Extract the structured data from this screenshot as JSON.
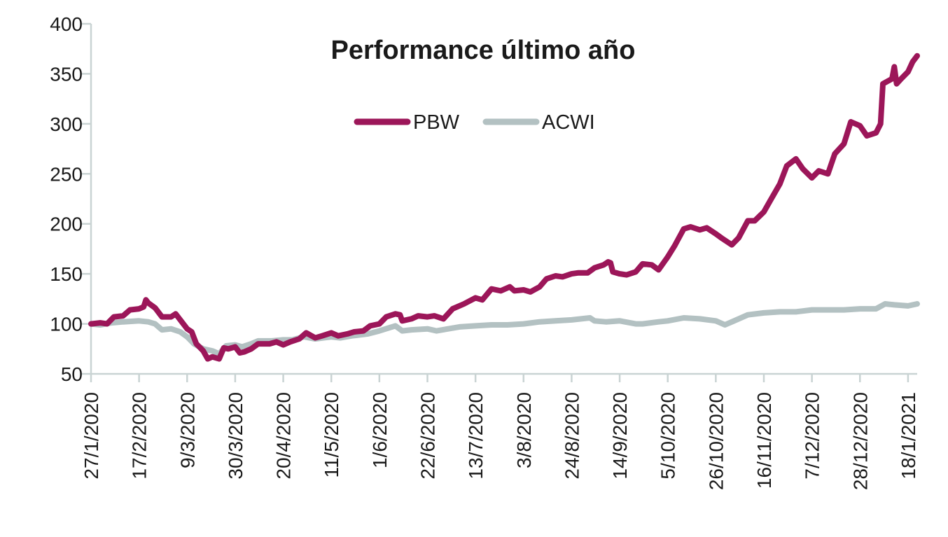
{
  "chart_data": {
    "type": "line",
    "title": "Performance último año",
    "xlabel": "",
    "ylabel": "",
    "ylim": [
      50,
      400
    ],
    "yticks": [
      50,
      100,
      150,
      200,
      250,
      300,
      350,
      400
    ],
    "xlim": [
      "2020-01-27",
      "2021-01-22"
    ],
    "grid": false,
    "legend": "top-center",
    "xtick_labels": [
      {
        "date": "2020-01-27",
        "label": "27/1/2020"
      },
      {
        "date": "2020-02-17",
        "label": "17/2/2020"
      },
      {
        "date": "2020-03-09",
        "label": "9/3/2020"
      },
      {
        "date": "2020-03-30",
        "label": "30/3/2020"
      },
      {
        "date": "2020-04-20",
        "label": "20/4/2020"
      },
      {
        "date": "2020-05-11",
        "label": "11/5/2020"
      },
      {
        "date": "2020-06-01",
        "label": "1/6/2020"
      },
      {
        "date": "2020-06-22",
        "label": "22/6/2020"
      },
      {
        "date": "2020-07-13",
        "label": "13/7/2020"
      },
      {
        "date": "2020-08-03",
        "label": "3/8/2020"
      },
      {
        "date": "2020-08-24",
        "label": "24/8/2020"
      },
      {
        "date": "2020-09-14",
        "label": "14/9/2020"
      },
      {
        "date": "2020-10-05",
        "label": "5/10/2020"
      },
      {
        "date": "2020-10-26",
        "label": "26/10/2020"
      },
      {
        "date": "2020-11-16",
        "label": "16/11/2020"
      },
      {
        "date": "2020-12-07",
        "label": "7/12/2020"
      },
      {
        "date": "2020-12-28",
        "label": "28/12/2020"
      },
      {
        "date": "2021-01-18",
        "label": "18/1/2021"
      }
    ],
    "series": [
      {
        "name": "PBW",
        "color": "#9c1659",
        "points": [
          [
            "2020-01-27",
            100
          ],
          [
            "2020-01-31",
            101
          ],
          [
            "2020-02-03",
            100
          ],
          [
            "2020-02-06",
            107
          ],
          [
            "2020-02-10",
            108
          ],
          [
            "2020-02-13",
            114
          ],
          [
            "2020-02-17",
            115
          ],
          [
            "2020-02-19",
            117
          ],
          [
            "2020-02-20",
            124
          ],
          [
            "2020-02-21",
            121
          ],
          [
            "2020-02-24",
            116
          ],
          [
            "2020-02-27",
            107
          ],
          [
            "2020-03-02",
            107
          ],
          [
            "2020-03-04",
            110
          ],
          [
            "2020-03-06",
            104
          ],
          [
            "2020-03-09",
            95
          ],
          [
            "2020-03-11",
            92
          ],
          [
            "2020-03-13",
            80
          ],
          [
            "2020-03-16",
            73
          ],
          [
            "2020-03-18",
            65
          ],
          [
            "2020-03-20",
            67
          ],
          [
            "2020-03-23",
            65
          ],
          [
            "2020-03-25",
            76
          ],
          [
            "2020-03-27",
            75
          ],
          [
            "2020-03-30",
            77
          ],
          [
            "2020-04-01",
            71
          ],
          [
            "2020-04-03",
            72
          ],
          [
            "2020-04-06",
            75
          ],
          [
            "2020-04-09",
            80
          ],
          [
            "2020-04-14",
            80
          ],
          [
            "2020-04-17",
            82
          ],
          [
            "2020-04-20",
            79
          ],
          [
            "2020-04-23",
            82
          ],
          [
            "2020-04-27",
            85
          ],
          [
            "2020-04-30",
            91
          ],
          [
            "2020-05-04",
            86
          ],
          [
            "2020-05-07",
            88
          ],
          [
            "2020-05-11",
            91
          ],
          [
            "2020-05-14",
            88
          ],
          [
            "2020-05-18",
            90
          ],
          [
            "2020-05-21",
            92
          ],
          [
            "2020-05-25",
            93
          ],
          [
            "2020-05-28",
            98
          ],
          [
            "2020-06-01",
            100
          ],
          [
            "2020-06-04",
            107
          ],
          [
            "2020-06-08",
            110
          ],
          [
            "2020-06-10",
            109
          ],
          [
            "2020-06-11",
            103
          ],
          [
            "2020-06-15",
            105
          ],
          [
            "2020-06-18",
            108
          ],
          [
            "2020-06-22",
            107
          ],
          [
            "2020-06-25",
            108
          ],
          [
            "2020-06-29",
            105
          ],
          [
            "2020-07-03",
            115
          ],
          [
            "2020-07-08",
            120
          ],
          [
            "2020-07-13",
            126
          ],
          [
            "2020-07-16",
            124
          ],
          [
            "2020-07-20",
            135
          ],
          [
            "2020-07-24",
            133
          ],
          [
            "2020-07-28",
            137
          ],
          [
            "2020-07-30",
            133
          ],
          [
            "2020-08-03",
            134
          ],
          [
            "2020-08-06",
            132
          ],
          [
            "2020-08-10",
            137
          ],
          [
            "2020-08-13",
            145
          ],
          [
            "2020-08-17",
            148
          ],
          [
            "2020-08-20",
            147
          ],
          [
            "2020-08-24",
            150
          ],
          [
            "2020-08-27",
            151
          ],
          [
            "2020-08-31",
            151
          ],
          [
            "2020-09-03",
            156
          ],
          [
            "2020-09-07",
            159
          ],
          [
            "2020-09-09",
            162
          ],
          [
            "2020-09-10",
            161
          ],
          [
            "2020-09-11",
            152
          ],
          [
            "2020-09-14",
            150
          ],
          [
            "2020-09-17",
            149
          ],
          [
            "2020-09-21",
            152
          ],
          [
            "2020-09-24",
            160
          ],
          [
            "2020-09-28",
            159
          ],
          [
            "2020-10-01",
            154
          ],
          [
            "2020-10-05",
            167
          ],
          [
            "2020-10-08",
            178
          ],
          [
            "2020-10-12",
            195
          ],
          [
            "2020-10-15",
            197
          ],
          [
            "2020-10-19",
            194
          ],
          [
            "2020-10-22",
            196
          ],
          [
            "2020-10-26",
            190
          ],
          [
            "2020-10-29",
            185
          ],
          [
            "2020-11-02",
            179
          ],
          [
            "2020-11-05",
            186
          ],
          [
            "2020-11-09",
            203
          ],
          [
            "2020-11-12",
            203
          ],
          [
            "2020-11-16",
            212
          ],
          [
            "2020-11-19",
            224
          ],
          [
            "2020-11-23",
            240
          ],
          [
            "2020-11-26",
            258
          ],
          [
            "2020-11-30",
            265
          ],
          [
            "2020-12-03",
            255
          ],
          [
            "2020-12-07",
            246
          ],
          [
            "2020-12-10",
            253
          ],
          [
            "2020-12-14",
            250
          ],
          [
            "2020-12-17",
            270
          ],
          [
            "2020-12-21",
            280
          ],
          [
            "2020-12-24",
            302
          ],
          [
            "2020-12-28",
            298
          ],
          [
            "2020-12-31",
            288
          ],
          [
            "2021-01-04",
            291
          ],
          [
            "2021-01-06",
            300
          ],
          [
            "2021-01-07",
            340
          ],
          [
            "2021-01-11",
            345
          ],
          [
            "2021-01-12",
            357
          ],
          [
            "2021-01-13",
            340
          ],
          [
            "2021-01-15",
            345
          ],
          [
            "2021-01-18",
            352
          ],
          [
            "2021-01-20",
            362
          ],
          [
            "2021-01-22",
            368
          ]
        ]
      },
      {
        "name": "ACWI",
        "color": "#b3c1c2",
        "points": [
          [
            "2020-01-27",
            100
          ],
          [
            "2020-01-31",
            99
          ],
          [
            "2020-02-05",
            101
          ],
          [
            "2020-02-10",
            102
          ],
          [
            "2020-02-17",
            103
          ],
          [
            "2020-02-21",
            102
          ],
          [
            "2020-02-24",
            100
          ],
          [
            "2020-02-27",
            94
          ],
          [
            "2020-03-02",
            95
          ],
          [
            "2020-03-06",
            92
          ],
          [
            "2020-03-09",
            87
          ],
          [
            "2020-03-12",
            80
          ],
          [
            "2020-03-16",
            75
          ],
          [
            "2020-03-20",
            73
          ],
          [
            "2020-03-23",
            70
          ],
          [
            "2020-03-26",
            78
          ],
          [
            "2020-03-30",
            79
          ],
          [
            "2020-04-02",
            77
          ],
          [
            "2020-04-06",
            80
          ],
          [
            "2020-04-09",
            83
          ],
          [
            "2020-04-15",
            83
          ],
          [
            "2020-04-20",
            84
          ],
          [
            "2020-04-24",
            84
          ],
          [
            "2020-04-29",
            87
          ],
          [
            "2020-05-04",
            85
          ],
          [
            "2020-05-11",
            87
          ],
          [
            "2020-05-15",
            86
          ],
          [
            "2020-05-20",
            88
          ],
          [
            "2020-05-27",
            90
          ],
          [
            "2020-06-01",
            93
          ],
          [
            "2020-06-08",
            98
          ],
          [
            "2020-06-11",
            93
          ],
          [
            "2020-06-15",
            94
          ],
          [
            "2020-06-22",
            95
          ],
          [
            "2020-06-26",
            93
          ],
          [
            "2020-07-06",
            97
          ],
          [
            "2020-07-13",
            98
          ],
          [
            "2020-07-20",
            99
          ],
          [
            "2020-07-27",
            99
          ],
          [
            "2020-08-03",
            100
          ],
          [
            "2020-08-10",
            102
          ],
          [
            "2020-08-17",
            103
          ],
          [
            "2020-08-24",
            104
          ],
          [
            "2020-09-01",
            106
          ],
          [
            "2020-09-03",
            103
          ],
          [
            "2020-09-08",
            102
          ],
          [
            "2020-09-14",
            103
          ],
          [
            "2020-09-21",
            100
          ],
          [
            "2020-09-24",
            100
          ],
          [
            "2020-10-01",
            102
          ],
          [
            "2020-10-05",
            103
          ],
          [
            "2020-10-12",
            106
          ],
          [
            "2020-10-19",
            105
          ],
          [
            "2020-10-26",
            103
          ],
          [
            "2020-10-30",
            99
          ],
          [
            "2020-11-03",
            103
          ],
          [
            "2020-11-09",
            109
          ],
          [
            "2020-11-16",
            111
          ],
          [
            "2020-11-23",
            112
          ],
          [
            "2020-11-30",
            112
          ],
          [
            "2020-12-07",
            114
          ],
          [
            "2020-12-14",
            114
          ],
          [
            "2020-12-21",
            114
          ],
          [
            "2020-12-28",
            115
          ],
          [
            "2021-01-04",
            115
          ],
          [
            "2021-01-08",
            120
          ],
          [
            "2021-01-12",
            119
          ],
          [
            "2021-01-18",
            118
          ],
          [
            "2021-01-22",
            120
          ]
        ]
      }
    ]
  }
}
